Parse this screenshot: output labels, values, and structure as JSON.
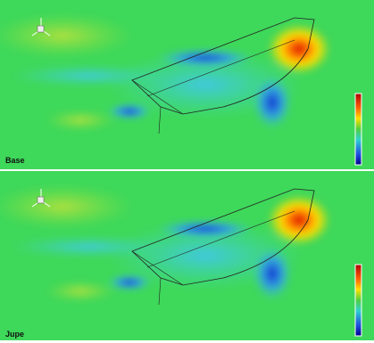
{
  "panels": [
    {
      "label": "Base"
    },
    {
      "label": "Jupe"
    }
  ]
}
